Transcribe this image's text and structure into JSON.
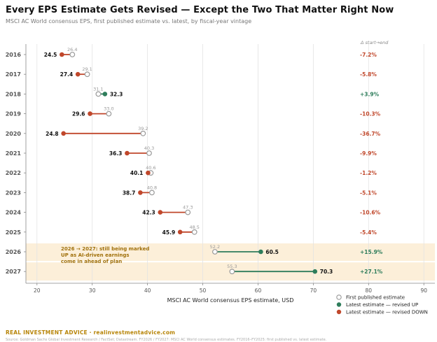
{
  "header": {
    "title": "Every EPS Estimate Gets Revised — Except the Two That Matter Right Now",
    "subtitle": "MSCI AC World consensus EPS, first published estimate vs. latest, by fiscal-year vintage"
  },
  "footer": {
    "brand": "REAL INVESTMENT ADVICE · realinvestmentadvice.com",
    "source": "Source: Goldman Sachs Global Investment Research / FactSet; Datastream. FY2026 / FY2027: MSCI AC World consensus estimates. FY2016–FY2025: first published vs. latest estimate."
  },
  "colors": {
    "first": "#999999",
    "up": "#2e7d5b",
    "down": "#c0472b",
    "highlight": "#fcefd9",
    "annotation": "#a0700a"
  },
  "chart_data": {
    "type": "dumbbell",
    "xlabel": "MSCI AC World consensus EPS estimate, USD",
    "xlim": [
      18,
      92
    ],
    "xticks": [
      20,
      30,
      40,
      50,
      60,
      70,
      80,
      90
    ],
    "change_header": "Δ start→end",
    "categories": [
      "2016",
      "2017",
      "2018",
      "2019",
      "2020",
      "2021",
      "2022",
      "2023",
      "2024",
      "2025",
      "2026",
      "2027"
    ],
    "first_estimate": [
      26.4,
      29.1,
      31.1,
      33.0,
      39.2,
      40.3,
      40.6,
      40.8,
      47.3,
      48.5,
      52.2,
      55.3
    ],
    "latest_estimate": [
      24.5,
      27.4,
      32.3,
      29.6,
      24.8,
      36.3,
      40.1,
      38.7,
      42.3,
      45.9,
      60.5,
      70.3
    ],
    "direction": [
      "down",
      "down",
      "up",
      "down",
      "down",
      "down",
      "down",
      "down",
      "down",
      "down",
      "up",
      "up"
    ],
    "change_label": [
      "-7.2%",
      "-5.8%",
      "+3.9%",
      "-10.3%",
      "-36.7%",
      "-9.9%",
      "-1.2%",
      "-5.1%",
      "-10.6%",
      "-5.4%",
      "+15.9%",
      "+27.1%"
    ],
    "first_label": [
      "26.4",
      "29.1",
      "31.1",
      "33.0",
      "39.2",
      "40.3",
      "40.6",
      "40.8",
      "47.3",
      "48.5",
      "52.2",
      "55.3"
    ],
    "latest_label": [
      "24.5",
      "27.4",
      "32.3",
      "29.6",
      "24.8",
      "36.3",
      "40.1",
      "38.7",
      "42.3",
      "45.9",
      "60.5",
      "70.3"
    ],
    "highlight_rows": [
      "2026",
      "2027"
    ],
    "annotation": [
      "2026 → 2027: still being marked",
      "UP as AI-driven earnings",
      "come in ahead of plan"
    ],
    "legend": [
      {
        "key": "first",
        "label": "First published estimate"
      },
      {
        "key": "up",
        "label": "Latest estimate — revised UP"
      },
      {
        "key": "down",
        "label": "Latest estimate — revised DOWN"
      }
    ],
    "legend_position": "bottom-right",
    "grid": "vertical"
  }
}
